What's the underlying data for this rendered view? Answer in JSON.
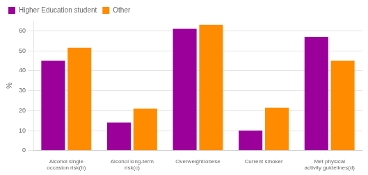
{
  "chart_data": {
    "type": "bar",
    "categories": [
      "Alcohol single\noccasion risk(b)",
      "Alcohol long-term\nrisk(c)",
      "Overweight/obese",
      "Current smoker",
      "Met physical\nactivity guidelines(d)"
    ],
    "series": [
      {
        "name": "Higher Education student",
        "color": "#9B009B",
        "values": [
          45,
          14,
          61,
          10,
          57
        ]
      },
      {
        "name": "Other",
        "color": "#FF8C00",
        "values": [
          51.5,
          21,
          63,
          21.5,
          45
        ]
      }
    ],
    "ylabel": "%",
    "ylim": [
      0,
      65
    ],
    "yticks": [
      0,
      10,
      20,
      30,
      40,
      50,
      60
    ],
    "grid": true,
    "legend": "upper left"
  }
}
